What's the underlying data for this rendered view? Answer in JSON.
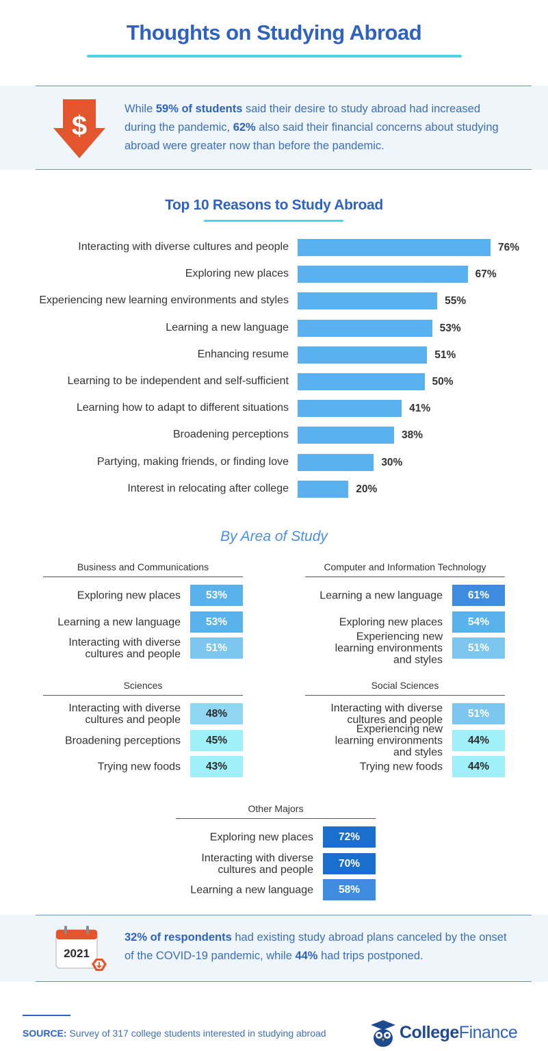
{
  "title": "Thoughts on Studying Abroad",
  "callout_top": {
    "icon": "dollar-down-arrow-icon",
    "pre1": "While ",
    "bold1": "59% of students",
    "mid1": " said their desire to study abroad had increased during the pandemic, ",
    "bold2": "62%",
    "post": " also said their financial concerns about studying abroad were greater now than before the pandemic."
  },
  "chart_data": {
    "type": "bar",
    "orientation": "horizontal",
    "title": "Top 10 Reasons to Study Abroad",
    "xlabel": "",
    "ylabel": "",
    "categories": [
      "Interacting with diverse cultures and people",
      "Exploring new places",
      "Experiencing new learning environments and styles",
      "Learning a new language",
      "Enhancing resume",
      "Learning to be independent and self-sufficient",
      "Learning how to adapt to different situations",
      "Broadening perceptions",
      "Partying, making friends, or finding love",
      "Interest in relocating after college"
    ],
    "values": [
      76,
      67,
      55,
      53,
      51,
      50,
      41,
      38,
      30,
      20
    ],
    "value_suffix": "%",
    "xlim": [
      0,
      100
    ],
    "bar_color": "#5ab1f0"
  },
  "by_area": {
    "title": "By Area of Study",
    "groups": [
      {
        "name": "Business and Communications",
        "rows": [
          {
            "label": "Exploring new places",
            "value": "53%",
            "pct": 53
          },
          {
            "label": "Learning a new language",
            "value": "53%",
            "pct": 53
          },
          {
            "label": "Interacting with diverse cultures and people",
            "value": "51%",
            "pct": 51
          }
        ]
      },
      {
        "name": "Computer and Information Technology",
        "rows": [
          {
            "label": "Learning a new language",
            "value": "61%",
            "pct": 61
          },
          {
            "label": "Exploring new places",
            "value": "54%",
            "pct": 54
          },
          {
            "label": "Experiencing new learning environments and styles",
            "value": "51%",
            "pct": 51
          }
        ]
      },
      {
        "name": "Sciences",
        "rows": [
          {
            "label": "Interacting with diverse cultures and people",
            "value": "48%",
            "pct": 48
          },
          {
            "label": "Broadening perceptions",
            "value": "45%",
            "pct": 45
          },
          {
            "label": "Trying new foods",
            "value": "43%",
            "pct": 43
          }
        ]
      },
      {
        "name": "Social Sciences",
        "rows": [
          {
            "label": "Interacting with diverse cultures and people",
            "value": "51%",
            "pct": 51
          },
          {
            "label": "Experiencing new learning environments and styles",
            "value": "44%",
            "pct": 44
          },
          {
            "label": "Trying new foods",
            "value": "44%",
            "pct": 44
          }
        ]
      },
      {
        "name": "Other Majors",
        "rows": [
          {
            "label": "Exploring new places",
            "value": "72%",
            "pct": 72
          },
          {
            "label": "Interacting with diverse cultures and people",
            "value": "70%",
            "pct": 70
          },
          {
            "label": "Learning a new language",
            "value": "58%",
            "pct": 58
          }
        ]
      }
    ]
  },
  "callout_bottom": {
    "icon": "calendar-2021-icon",
    "calendar_year": "2021",
    "bold1": "32% of respondents",
    "mid1": " had existing study abroad plans canceled by the onset of the COVID-19 pandemic, while ",
    "bold2": "44%",
    "post": " had trips postponed."
  },
  "footer": {
    "source_label": "SOURCE:",
    "source_text": " Survey of 317 college students interested in studying abroad",
    "brand_bold": "College",
    "brand_light": "Finance",
    "brand_icon": "owl-mascot-icon"
  }
}
